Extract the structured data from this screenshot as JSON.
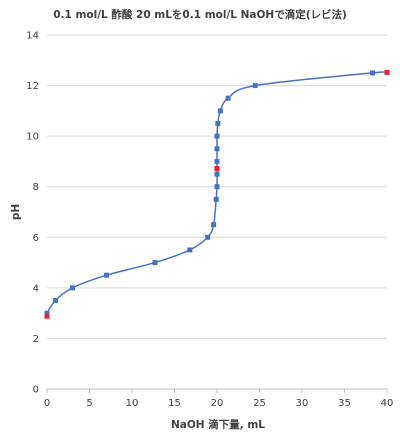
{
  "chart_data": {
    "type": "scatter",
    "title": "0.1 mol/L 酢酸 20 mLを0.1 mol/L NaOHで滴定(レビ法)",
    "xlabel": "NaOH 滴下量, mL",
    "ylabel": "pH",
    "xlim": [
      0,
      40
    ],
    "ylim": [
      0,
      14
    ],
    "x_ticks": [
      "0",
      "5",
      "10",
      "15",
      "20",
      "25",
      "30",
      "35",
      "40"
    ],
    "y_ticks": [
      "0",
      "2",
      "4",
      "6",
      "8",
      "10",
      "12",
      "14"
    ],
    "grid": "horizontal",
    "legend": "none",
    "colors": {
      "line": "#4472c4",
      "marker": "#4472c4",
      "highlight": "#e8212b",
      "text": "#404040"
    },
    "series": [
      {
        "values": [
          {
            "x": 0.0,
            "y": 3.0
          },
          {
            "x": 1.0,
            "y": 3.5
          },
          {
            "x": 3.0,
            "y": 4.0
          },
          {
            "x": 7.0,
            "y": 4.5
          },
          {
            "x": 12.7,
            "y": 5.0
          },
          {
            "x": 16.8,
            "y": 5.5
          },
          {
            "x": 18.9,
            "y": 6.0
          },
          {
            "x": 19.6,
            "y": 6.5
          },
          {
            "x": 19.9,
            "y": 7.5
          },
          {
            "x": 20.0,
            "y": 8.0
          },
          {
            "x": 20.0,
            "y": 8.5
          },
          {
            "x": 20.0,
            "y": 9.0
          },
          {
            "x": 20.0,
            "y": 9.5
          },
          {
            "x": 20.0,
            "y": 10.0
          },
          {
            "x": 20.1,
            "y": 10.5
          },
          {
            "x": 20.4,
            "y": 11.0
          },
          {
            "x": 21.3,
            "y": 11.5
          },
          {
            "x": 24.5,
            "y": 12.0
          },
          {
            "x": 38.3,
            "y": 12.5
          }
        ]
      }
    ],
    "highlight_points": [
      {
        "x": 0.0,
        "y": 2.88
      },
      {
        "x": 20.0,
        "y": 8.72
      },
      {
        "x": 40.0,
        "y": 12.52
      }
    ]
  }
}
